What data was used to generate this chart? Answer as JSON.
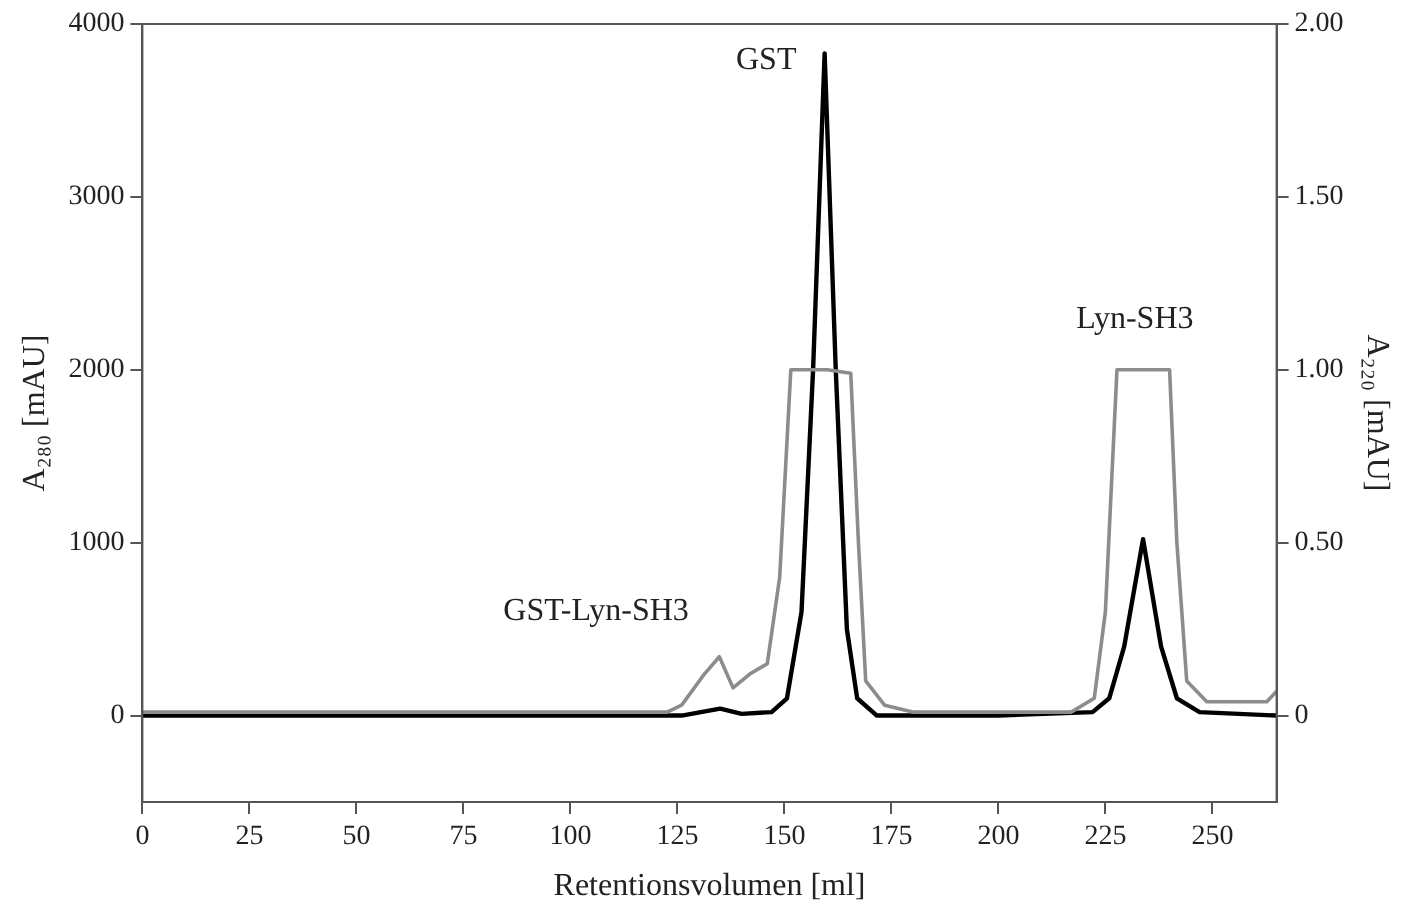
{
  "chart_data": {
    "type": "line",
    "xlabel": "Retentionsvolumen [ml]",
    "ylabel": "A₂₈₀ [mAU]",
    "y2label": "A₂₂₀ [mAU]",
    "xlim": [
      0,
      265
    ],
    "xticks": [
      0,
      25,
      50,
      75,
      100,
      125,
      150,
      175,
      200,
      225,
      250
    ],
    "ylim": [
      -500,
      4000
    ],
    "yticks": [
      0,
      1000,
      2000,
      3000,
      4000
    ],
    "y2lim": [
      -0.25,
      2.0
    ],
    "y2ticks": [
      0,
      {
        "value": 0.5,
        "label": "0.50"
      },
      {
        "value": 1.0,
        "label": "1.00"
      },
      {
        "value": 1.5,
        "label": "1.50"
      },
      {
        "value": 2.0,
        "label": "2.00"
      }
    ],
    "grid": false,
    "legend": false,
    "marker": "none",
    "line_style": "solid",
    "series": [
      {
        "color": "#8c8c8c",
        "axis": "y2",
        "x": [
          0,
          25,
          50,
          75,
          100,
          122.6,
          126,
          131.3,
          134.8,
          138,
          141.9,
          146,
          148.9,
          151.5,
          155.9,
          160,
          165.5,
          167.3,
          169,
          173.4,
          180,
          200,
          217,
          222.4,
          225,
          227.7,
          233,
          240,
          241.7,
          244,
          248.7,
          262.7,
          265
        ],
        "values": [
          0.01,
          0.01,
          0.01,
          0.01,
          0.01,
          0.01,
          0.03,
          0.12,
          0.17,
          0.08,
          0.12,
          0.15,
          0.4,
          1.0,
          1.0,
          1.0,
          0.99,
          0.5,
          0.1,
          0.03,
          0.01,
          0.01,
          0.01,
          0.05,
          0.3,
          1.0,
          1.0,
          1.0,
          0.5,
          0.1,
          0.04,
          0.04,
          0.07
        ]
      },
      {
        "color": "#000000",
        "x": [
          0,
          50,
          100,
          126,
          135,
          140,
          147,
          150.6,
          154,
          156.7,
          159.4,
          162,
          164.6,
          167,
          171.6,
          200,
          222,
          225.9,
          229.4,
          233.8,
          238,
          241.7,
          247,
          265
        ],
        "values": [
          0,
          0,
          0,
          0,
          40,
          10,
          20,
          100,
          600,
          2000,
          3830,
          2000,
          500,
          100,
          0,
          0,
          20,
          100,
          400,
          1020,
          400,
          100,
          20,
          0
        ]
      }
    ],
    "annotations": [
      "GST",
      "Lyn-SH3",
      "GST-Lyn-SH3"
    ]
  }
}
